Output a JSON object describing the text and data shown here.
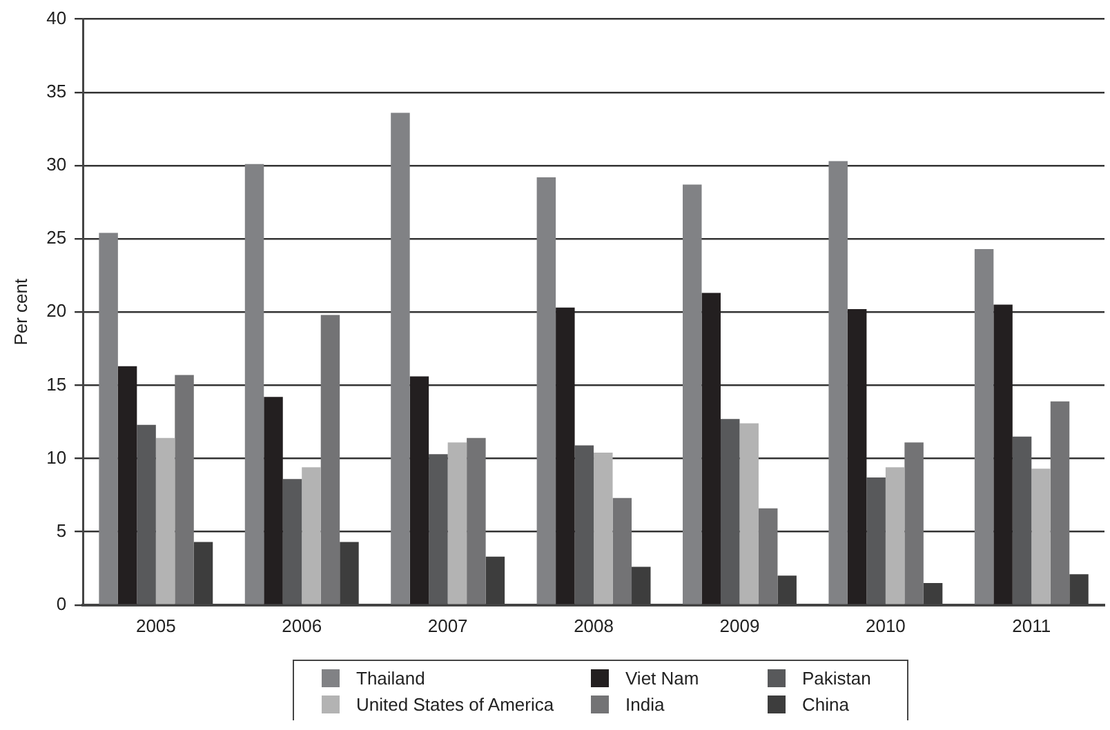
{
  "chart_data": {
    "type": "bar",
    "ylabel": "Per cent",
    "categories": [
      "2005",
      "2006",
      "2007",
      "2008",
      "2009",
      "2010",
      "2011"
    ],
    "series": [
      {
        "name": "Thailand",
        "color": "#818285",
        "values": [
          25.4,
          30.1,
          33.6,
          29.2,
          28.7,
          30.3,
          24.3
        ]
      },
      {
        "name": "Viet Nam",
        "color": "#231f20",
        "values": [
          16.3,
          14.2,
          15.6,
          20.3,
          21.3,
          20.2,
          20.5
        ]
      },
      {
        "name": "Pakistan",
        "color": "#58595b",
        "values": [
          12.3,
          8.6,
          10.3,
          10.9,
          12.7,
          8.7,
          11.5
        ]
      },
      {
        "name": "United States of America",
        "color": "#b3b3b3",
        "values": [
          11.4,
          9.4,
          11.1,
          10.4,
          12.4,
          9.4,
          9.3
        ]
      },
      {
        "name": "India",
        "color": "#737375",
        "values": [
          15.7,
          19.8,
          11.4,
          7.3,
          6.6,
          11.1,
          13.9
        ]
      },
      {
        "name": "China",
        "color": "#3d3d3d",
        "values": [
          4.3,
          4.3,
          3.3,
          2.6,
          2.0,
          1.5,
          2.1
        ]
      }
    ],
    "ylim": [
      0,
      40
    ],
    "yticks": [
      0,
      5,
      10,
      15,
      20,
      25,
      30,
      35,
      40
    ],
    "grid": "y",
    "legend": "bottom"
  }
}
